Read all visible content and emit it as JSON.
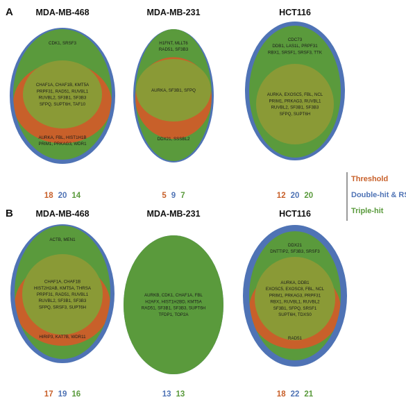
{
  "colors": {
    "threshold": "#c8602a",
    "double_hit_rsa": "#4f73b5",
    "triple_hit": "#5a9a3c",
    "overlap": "#8a9a36",
    "legend_line": "#333333"
  },
  "legend": {
    "threshold": "Threshold",
    "double_hit_rsa": "Double-hit & RSA",
    "triple_hit": "Triple-hit"
  },
  "panels": [
    {
      "letter": "A",
      "cells": [
        {
          "title": "MDA-MB-468",
          "triple_only": [
            "CDK1, SRSF3"
          ],
          "overlap": [
            "CHAF1A, CHAF1B, KMT5A",
            "PRPF31, RAD51, RUVBL1",
            "RUVBL2, SF3B1, SF3B3",
            "SFPQ, SUPT6H, TAF10"
          ],
          "threshold_only": [
            "AURKA, FBL, HIST1H1B",
            "PRIM1, PRKAG3, WDR1"
          ],
          "counts": {
            "threshold": "18",
            "double_hit_rsa": "20",
            "triple_hit": "14"
          }
        },
        {
          "title": "MDA-MB-231",
          "triple_only": [
            "H1FNT, MLLT6",
            "RAD51, SF3B3"
          ],
          "overlap": [
            "AURKA, SF3B1, SFPQ"
          ],
          "threshold_only": [
            "DDX21, SSSBL2"
          ],
          "counts": {
            "threshold": "5",
            "double_hit_rsa": "9",
            "triple_hit": "7"
          }
        },
        {
          "title": "HCT116",
          "triple_only": [
            "CDC73",
            "DDB1, LAS1L, PRPF31",
            "RBX1, SRSF1, SRSF3, TTK"
          ],
          "overlap": [
            "AURKA, EXOSC5, FBL, NCL",
            "PRIM1, PRKAG3, RUVBL1",
            "RUVBL2, SF3B1, SF3B3",
            "SFPQ, SUPT6H"
          ],
          "threshold_only": [],
          "counts": {
            "threshold": "12",
            "double_hit_rsa": "20",
            "triple_hit": "20"
          }
        }
      ]
    },
    {
      "letter": "B",
      "cells": [
        {
          "title": "MDA-MB-468",
          "triple_only": [
            "ACTB, MEN1"
          ],
          "overlap": [
            "CHAF1A, CHAF1B",
            "HIST2H2AB, KMT5A, THRSA",
            "PRPF31, RAD51, RUVBL1",
            "RUVBL2, SF3B1, SF3B3",
            "SFPQ, SRSF3, SUPT6H"
          ],
          "threshold_only": [
            "HIRIP3, KAT7B, WDR11"
          ],
          "counts": {
            "threshold": "17",
            "double_hit_rsa": "19",
            "triple_hit": "16"
          }
        },
        {
          "title": "MDA-MB-231",
          "triple_only": [],
          "overlap": [
            "AURKB, CDK1, CHAF1A, FBL",
            "H2AFX, HIST1H2BD, KMT5A",
            "RAD51, SF3B1, SF3B3, SUPT6H",
            "TFDP1, TOP2A"
          ],
          "threshold_only": [],
          "counts": {
            "threshold": "",
            "double_hit_rsa": "13",
            "triple_hit": "13"
          }
        },
        {
          "title": "HCT116",
          "triple_only": [
            "DDX21",
            "DNTTIP2, SF3B3, SRSF3"
          ],
          "overlap": [
            "AURKA, DDB1",
            "EXOSC5, EXOSC8, FBL, NCL",
            "PRIM1, PRKAG3, PRPF31",
            "RBX1, RUVBL1, RUVBL2",
            "SF3B1, SFPQ, SRSF1",
            "SUPT6H, TDXS0"
          ],
          "threshold_only": [
            "RAD51"
          ],
          "counts": {
            "threshold": "18",
            "double_hit_rsa": "22",
            "triple_hit": "21"
          }
        }
      ]
    }
  ]
}
